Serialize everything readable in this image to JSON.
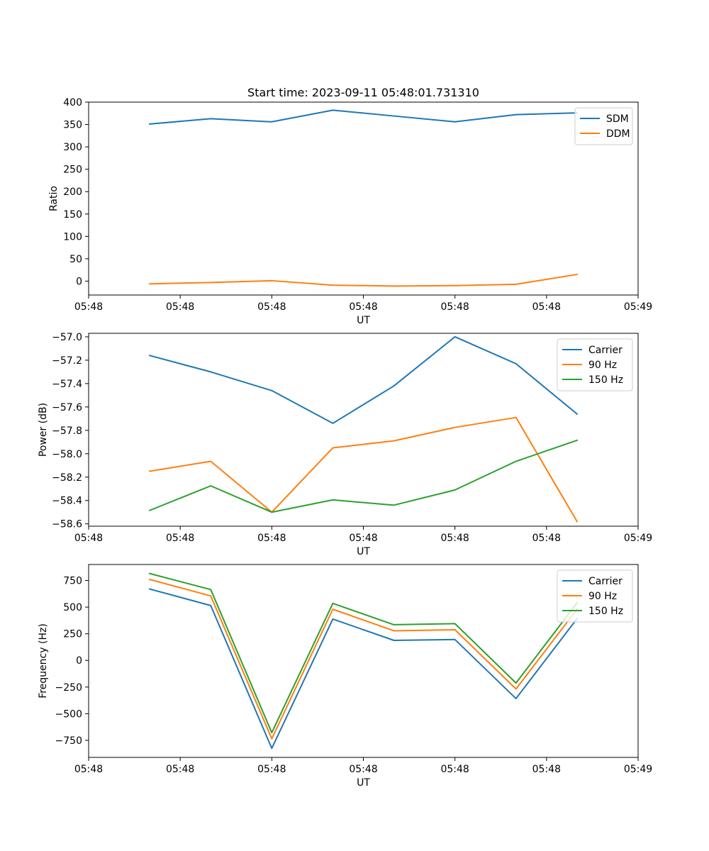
{
  "title": "Start time: 2023-09-11 05:48:01.731310",
  "colors": {
    "carrier_sdm": "#1f77b4",
    "orange": "#ff7f0e",
    "green": "#2ca02c"
  },
  "chart_data": [
    {
      "type": "line",
      "name": "ratio-panel",
      "xlabel": "UT",
      "ylabel": "Ratio",
      "xlim": [
        0,
        9
      ],
      "ylim": [
        -31,
        400
      ],
      "x": [
        1,
        2,
        3,
        4,
        5,
        6,
        7,
        8
      ],
      "xticks": [
        0,
        1.5,
        3,
        4.5,
        6,
        7.5,
        9
      ],
      "xtick_labels": [
        "05:48",
        "05:48",
        "05:48",
        "05:48",
        "05:48",
        "05:48",
        "05:49"
      ],
      "yticks": [
        0,
        50,
        100,
        150,
        200,
        250,
        300,
        350,
        400
      ],
      "ytick_labels": [
        "0",
        "50",
        "100",
        "150",
        "200",
        "250",
        "300",
        "350",
        "400"
      ],
      "legend_position": "top-right",
      "series": [
        {
          "name": "SDM",
          "color": "#1f77b4",
          "values": [
            351,
            363,
            356,
            382,
            369,
            356,
            372,
            376
          ]
        },
        {
          "name": "DDM",
          "color": "#ff7f0e",
          "values": [
            -6,
            -3,
            1,
            -9,
            -11,
            -10,
            -7,
            15
          ]
        }
      ]
    },
    {
      "type": "line",
      "name": "power-panel",
      "xlabel": "UT",
      "ylabel": "Power (dB)",
      "xlim": [
        0,
        9
      ],
      "ylim": [
        -58.62,
        -56.97
      ],
      "x": [
        1,
        2,
        3,
        4,
        5,
        6,
        7,
        8
      ],
      "xticks": [
        0,
        1.5,
        3,
        4.5,
        6,
        7.5,
        9
      ],
      "xtick_labels": [
        "05:48",
        "05:48",
        "05:48",
        "05:48",
        "05:48",
        "05:48",
        "05:49"
      ],
      "yticks": [
        -58.6,
        -58.4,
        -58.2,
        -58.0,
        -57.8,
        -57.6,
        -57.4,
        -57.2,
        -57.0
      ],
      "ytick_labels": [
        "−58.6",
        "−58.4",
        "−58.2",
        "−58.0",
        "−57.8",
        "−57.6",
        "−57.4",
        "−57.2",
        "−57.0"
      ],
      "legend_position": "top-right",
      "series": [
        {
          "name": "Carrier",
          "color": "#1f77b4",
          "values": [
            -57.16,
            -57.3,
            -57.46,
            -57.74,
            -57.42,
            -57.0,
            -57.23,
            -57.66
          ]
        },
        {
          "name": "90 Hz",
          "color": "#ff7f0e",
          "values": [
            -58.15,
            -58.065,
            -58.5,
            -57.95,
            -57.89,
            -57.775,
            -57.69,
            -58.58
          ]
        },
        {
          "name": "150 Hz",
          "color": "#2ca02c",
          "values": [
            -58.485,
            -58.275,
            -58.5,
            -58.395,
            -58.44,
            -58.31,
            -58.065,
            -57.885
          ]
        }
      ]
    },
    {
      "type": "line",
      "name": "frequency-panel",
      "xlabel": "UT",
      "ylabel": "Frequency (Hz)",
      "xlim": [
        0,
        9
      ],
      "ylim": [
        -910,
        900
      ],
      "x": [
        1,
        2,
        3,
        4,
        5,
        6,
        7,
        8
      ],
      "xticks": [
        0,
        1.5,
        3,
        4.5,
        6,
        7.5,
        9
      ],
      "xtick_labels": [
        "05:48",
        "05:48",
        "05:48",
        "05:48",
        "05:48",
        "05:48",
        "05:49"
      ],
      "yticks": [
        -750,
        -500,
        -250,
        0,
        250,
        500,
        750
      ],
      "ytick_labels": [
        "−750",
        "−500",
        "−250",
        "0",
        "250",
        "500",
        "750"
      ],
      "legend_position": "top-right",
      "series": [
        {
          "name": "Carrier",
          "color": "#1f77b4",
          "values": [
            670,
            515,
            -825,
            388,
            188,
            196,
            -358,
            392
          ]
        },
        {
          "name": "90 Hz",
          "color": "#ff7f0e",
          "values": [
            760,
            605,
            -735,
            480,
            278,
            288,
            -268,
            480
          ]
        },
        {
          "name": "150 Hz",
          "color": "#2ca02c",
          "values": [
            815,
            665,
            -678,
            535,
            335,
            345,
            -212,
            540
          ]
        }
      ]
    }
  ]
}
